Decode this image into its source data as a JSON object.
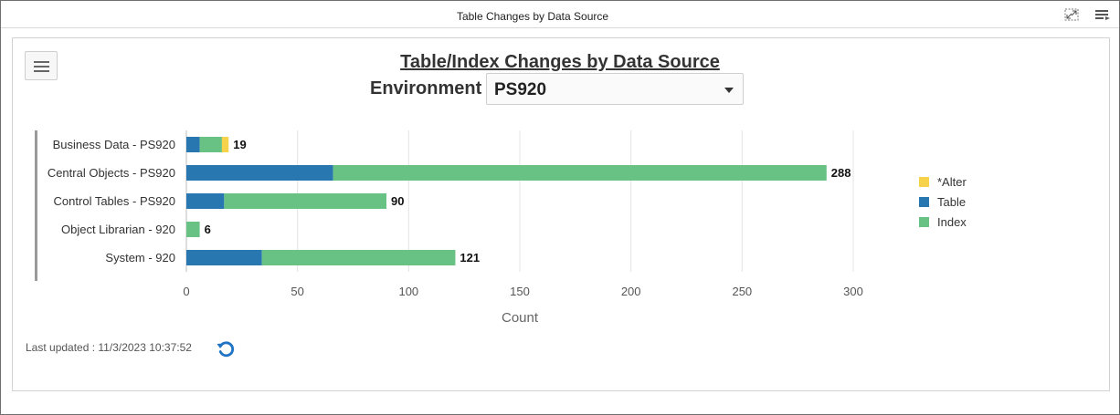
{
  "window": {
    "title": "Table Changes by Data Source"
  },
  "header": {
    "title": "Table/Index Changes by Data Source",
    "env_label": "Environment",
    "env_value": "PS920"
  },
  "footer": {
    "last_updated": "Last updated : 11/3/2023 10:37:52"
  },
  "icons": {
    "maximize": "maximize-icon",
    "window_menu": "list-settings-icon",
    "hamburger": "hamburger-icon",
    "refresh": "refresh-icon"
  },
  "colors": {
    "alter": "#f6d34a",
    "table": "#2877b1",
    "index": "#68c284",
    "refresh": "#1f74c4"
  },
  "chart_data": {
    "type": "bar",
    "orientation": "horizontal",
    "stacked": true,
    "categories": [
      "Business Data - PS920",
      "Central Objects - PS920",
      "Control Tables - PS920",
      "Object Librarian - 920",
      "System - 920"
    ],
    "series": [
      {
        "name": "Table",
        "color": "#2877b1",
        "values": [
          6,
          66,
          17,
          0,
          34
        ]
      },
      {
        "name": "Index",
        "color": "#68c284",
        "values": [
          10,
          222,
          73,
          6,
          87
        ]
      },
      {
        "name": "*Alter",
        "color": "#f6d34a",
        "values": [
          3,
          0,
          0,
          0,
          0
        ]
      }
    ],
    "totals": [
      19,
      288,
      90,
      6,
      121
    ],
    "legend_order": [
      "*Alter",
      "Table",
      "Index"
    ],
    "xlabel": "Count",
    "xlim": [
      0,
      300
    ],
    "xticks": [
      0,
      50,
      100,
      150,
      200,
      250,
      300
    ],
    "grid": true,
    "legend_position": "right"
  }
}
